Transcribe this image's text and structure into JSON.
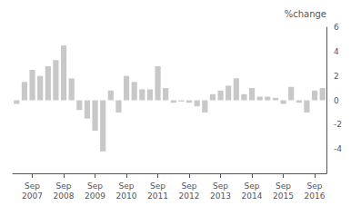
{
  "chart_data": {
    "type": "bar",
    "ylabel": "%change",
    "categories": [
      null,
      null,
      "Sep\n2007",
      null,
      null,
      null,
      "Sep\n2008",
      null,
      null,
      null,
      "Sep\n2009",
      null,
      null,
      null,
      "Sep\n2010",
      null,
      null,
      null,
      "Sep\n2011",
      null,
      null,
      null,
      "Sep\n2012",
      null,
      null,
      null,
      "Sep\n2013",
      null,
      null,
      null,
      "Sep\n2014",
      null,
      null,
      null,
      "Sep\n2015",
      null,
      null,
      null,
      "Sep\n2016",
      null
    ],
    "values": [
      -0.3,
      1.5,
      2.5,
      2.0,
      2.8,
      3.3,
      4.5,
      1.8,
      -0.8,
      -1.5,
      -2.5,
      -4.2,
      0.8,
      -1.0,
      2.0,
      1.5,
      0.9,
      0.9,
      2.8,
      1.0,
      -0.2,
      -0.1,
      -0.2,
      -0.5,
      -1.0,
      0.5,
      0.8,
      1.2,
      1.8,
      0.5,
      1.0,
      0.3,
      0.3,
      0.2,
      -0.3,
      1.1,
      -0.2,
      -1.0,
      0.8,
      1.0
    ],
    "color": "#c8c8c8",
    "ylim": [
      -6,
      6
    ],
    "yticks": [
      -4,
      -2,
      0,
      2,
      4,
      6
    ],
    "grid": false
  }
}
